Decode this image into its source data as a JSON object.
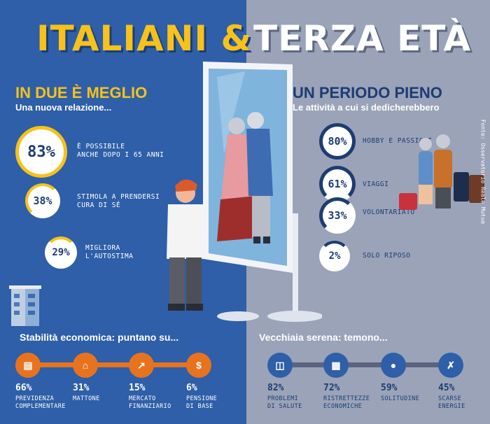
{
  "title": {
    "left": "ITALIANI &",
    "right": "TERZA ETÀ"
  },
  "left_section": {
    "heading": "IN DUE È MEGLIO",
    "subtitle": "Una nuova relazione...",
    "stats": [
      {
        "value": "83%",
        "label_1": "È POSSIBILE",
        "label_2": "ANCHE DOPO I 65 ANNI",
        "fraction": 0.83
      },
      {
        "value": "38%",
        "label_1": "STIMOLA A PRENDERSI",
        "label_2": "CURA DI SÉ",
        "fraction": 0.38
      },
      {
        "value": "29%",
        "label_1": "MIGLIORA",
        "label_2": "L'AUTOSTIMA",
        "fraction": 0.29
      }
    ]
  },
  "right_section": {
    "heading": "UN PERIODO PIENO",
    "subtitle": "Le attività a cui si dedicherebbero",
    "stats": [
      {
        "value": "80%",
        "label": "HOBBY E PASSIONI",
        "fraction": 0.8
      },
      {
        "value": "61%",
        "label": "VIAGGI",
        "fraction": 0.61
      },
      {
        "value": "33%",
        "label": "VOLONTARIATO",
        "fraction": 0.33
      },
      {
        "value": "2%",
        "label": "SOLO RIPOSO",
        "fraction": 0.02
      }
    ]
  },
  "economic": {
    "title": "Stabilità economica: puntano su...",
    "items": [
      {
        "value": "66%",
        "line_1": "PREVIDENZA",
        "line_2": "COMPLEMENTARE",
        "icon": "document-icon"
      },
      {
        "value": "31%",
        "line_1": "MATTONE",
        "line_2": "",
        "icon": "house-icon"
      },
      {
        "value": "15%",
        "line_1": "MERCATO",
        "line_2": "FINANZIARIO",
        "icon": "chart-icon"
      },
      {
        "value": "6%",
        "line_1": "PENSIONE",
        "line_2": "DI BASE",
        "icon": "money-icon"
      }
    ]
  },
  "fears": {
    "title": "Vecchiaia serena: temono...",
    "items": [
      {
        "value": "82%",
        "line_1": "PROBLEMI",
        "line_2": "DI SALUTE",
        "icon": "iv-drip-icon"
      },
      {
        "value": "72%",
        "line_1": "RISTRETTEZZE",
        "line_2": "ECONOMICHE",
        "icon": "broken-card-icon"
      },
      {
        "value": "59%",
        "line_1": "SOLITUDINE",
        "line_2": "",
        "icon": "group-icon"
      },
      {
        "value": "45%",
        "line_1": "SCARSE",
        "line_2": "ENERGIE",
        "icon": "broken-bone-icon"
      }
    ]
  },
  "source": "Fonte: Osservatorio Reale Mutua",
  "colors": {
    "blue": "#2e5fa8",
    "grey": "#9aa3b8",
    "yellow": "#f6c21b",
    "orange": "#e8731e",
    "navy": "#1c3d73"
  }
}
